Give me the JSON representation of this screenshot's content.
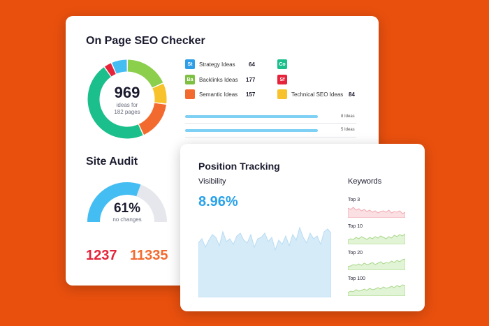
{
  "colors": {
    "background": "#e9500e",
    "accent_blue": "#2aa2e9",
    "red": "#e5243b",
    "orange": "#f36a2f"
  },
  "seo": {
    "title": "On Page SEO Checker",
    "donut": {
      "value": "969",
      "line1": "ideas for",
      "line2": "182 pages",
      "segments": [
        {
          "label": "Ba",
          "value": 177,
          "color": "#8ccf4d"
        },
        {
          "label": "Technical SEO",
          "value": 84,
          "color": "#f7c22b"
        },
        {
          "label": "Semantic",
          "value": 157,
          "color": "#f36a2f"
        },
        {
          "label": "Co",
          "value": 455,
          "color": "#1bbf8c"
        },
        {
          "label": "Sf",
          "value": 32,
          "color": "#e5243b"
        },
        {
          "label": "St",
          "value": 64,
          "color": "#44bdf2"
        }
      ]
    },
    "legend": [
      {
        "abbr": "St",
        "label": "Strategy Ideas",
        "count": "64",
        "color": "#2e9fe6"
      },
      {
        "abbr": "Ba",
        "label": "Backlinks Ideas",
        "count": "177",
        "color": "#7ec042"
      },
      {
        "abbr": "",
        "label": "Semantic Ideas",
        "count": "157",
        "color": "#f36a2f"
      },
      {
        "abbr": "Co",
        "label": "",
        "count": "",
        "color": "#1bbf8c"
      },
      {
        "abbr": "Sf",
        "label": "",
        "count": "",
        "color": "#e5243b"
      },
      {
        "abbr": "",
        "label": "Technical SEO Ideas",
        "count": "84",
        "color": "#f7c22b"
      }
    ],
    "bars": [
      {
        "label": "8 Ideas",
        "fill": 1.0
      },
      {
        "label": "5 Ideas",
        "fill": 1.0
      }
    ]
  },
  "audit": {
    "title": "Site Audit",
    "percent": "61%",
    "percent_value": 61,
    "subtitle": "no changes",
    "num1": "1237",
    "num2": "11335"
  },
  "tracking": {
    "title": "Position Tracking",
    "visibility_label": "Visibility",
    "visibility_value": "8.96%",
    "keywords_label": "Keywords",
    "keywords": [
      {
        "label": "Top 3",
        "color": "#f1a9b1",
        "fill": "#fbe0e3"
      },
      {
        "label": "Top 10",
        "color": "#a9d88b",
        "fill": "#e2f4d6"
      },
      {
        "label": "Top 20",
        "color": "#a9d88b",
        "fill": "#e2f4d6"
      },
      {
        "label": "Top 100",
        "color": "#a9d88b",
        "fill": "#e2f4d6"
      }
    ]
  }
}
